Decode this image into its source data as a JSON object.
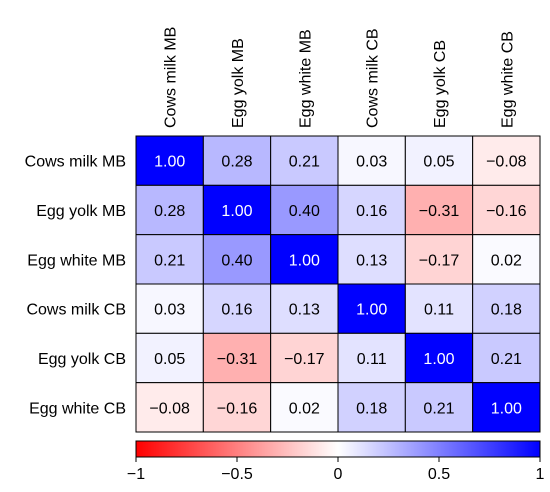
{
  "chart_data": {
    "type": "heatmap",
    "row_labels": [
      "Cows milk MB",
      "Egg yolk MB",
      "Egg white MB",
      "Cows milk CB",
      "Egg yolk CB",
      "Egg white CB"
    ],
    "col_labels": [
      "Cows milk MB",
      "Egg yolk MB",
      "Egg white MB",
      "Cows milk CB",
      "Egg yolk CB",
      "Egg white CB"
    ],
    "values": [
      [
        1.0,
        0.28,
        0.21,
        0.03,
        0.05,
        -0.08
      ],
      [
        0.28,
        1.0,
        0.4,
        0.16,
        -0.31,
        -0.16
      ],
      [
        0.21,
        0.4,
        1.0,
        0.13,
        -0.17,
        0.02
      ],
      [
        0.03,
        0.16,
        0.13,
        1.0,
        0.11,
        0.18
      ],
      [
        0.05,
        -0.31,
        -0.17,
        0.11,
        1.0,
        0.21
      ],
      [
        -0.08,
        -0.16,
        0.02,
        0.18,
        0.21,
        1.0
      ]
    ],
    "cell_labels": [
      [
        "1.00",
        "0.28",
        "0.21",
        "0.03",
        "0.05",
        "−0.08"
      ],
      [
        "0.28",
        "1.00",
        "0.40",
        "0.16",
        "−0.31",
        "−0.16"
      ],
      [
        "0.21",
        "0.40",
        "1.00",
        "0.13",
        "−0.17",
        "0.02"
      ],
      [
        "0.03",
        "0.16",
        "0.13",
        "1.00",
        "0.11",
        "0.18"
      ],
      [
        "0.05",
        "−0.31",
        "−0.17",
        "0.11",
        "1.00",
        "0.21"
      ],
      [
        "−0.08",
        "−0.16",
        "0.02",
        "0.18",
        "0.21",
        "1.00"
      ]
    ],
    "colorbar": {
      "range": [
        -1,
        1
      ],
      "ticks": [
        -1,
        -0.5,
        0,
        0.5,
        1
      ],
      "tick_labels": [
        "−1",
        "−0.5",
        "0",
        "0.5",
        "1"
      ],
      "colors": {
        "negative": "#ff0000",
        "zero": "#ffffff",
        "positive": "#0000ff"
      }
    },
    "title": "",
    "xlabel": "",
    "ylabel": ""
  }
}
